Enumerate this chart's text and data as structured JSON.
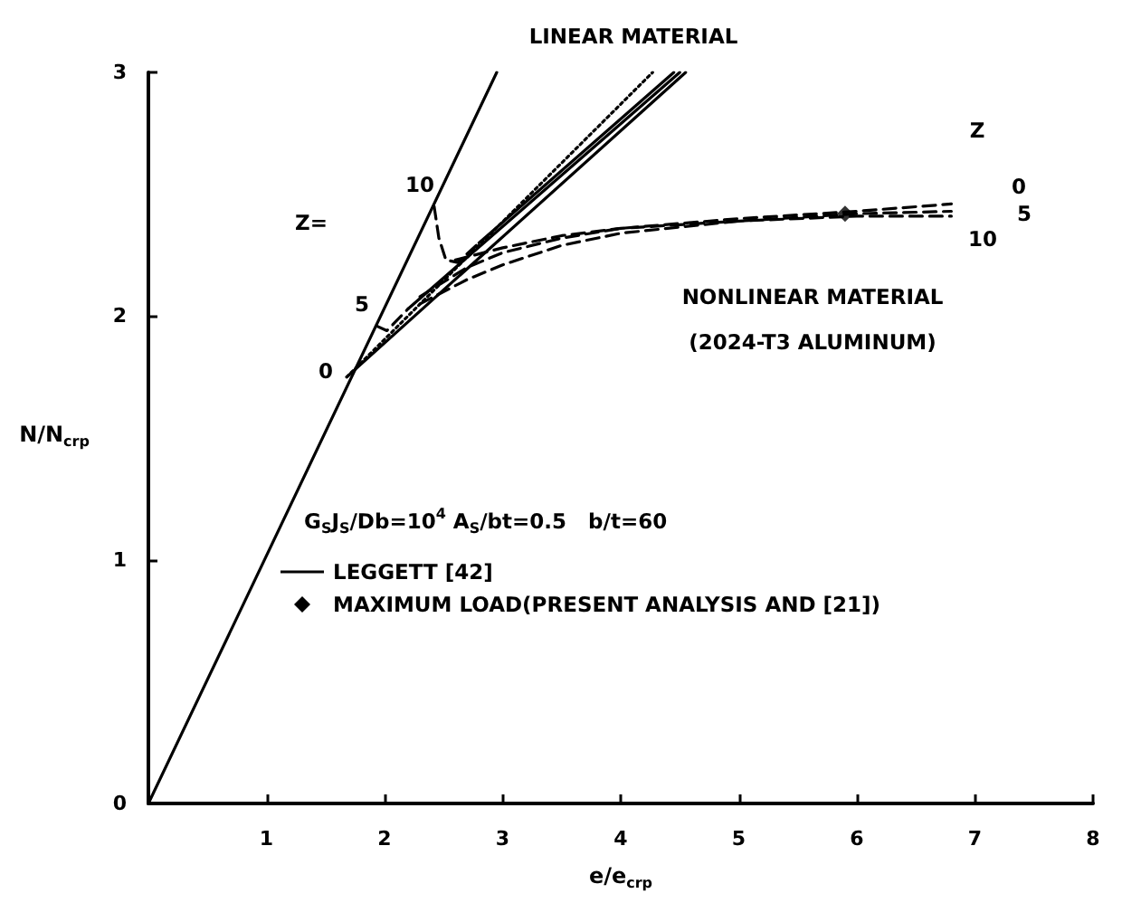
{
  "chart_data": {
    "type": "line",
    "xlabel": "e/e$_{crp}$",
    "ylabel": "N/N$_{crp}$",
    "xlim": [
      0,
      8
    ],
    "xticks": [
      {
        "value": 0,
        "label": null
      },
      1,
      2,
      3,
      4,
      5,
      6,
      7,
      8
    ],
    "ylim": [
      0,
      3
    ],
    "yticks": [
      0,
      1,
      2,
      3
    ],
    "grid": false,
    "legend": "left",
    "marker": "none",
    "annotations": [
      "LINEAR MATERIAL",
      "G$_{S}$J$_{S}$/Db=10$^{4}$ A$_{S}$/bt=0.5   b/t=60",
      "Z=",
      "10",
      "5",
      "0",
      "Z",
      "0",
      "5",
      "10",
      "NONLINEAR MATERIAL",
      "(2024-T3 ALUMINUM)"
    ],
    "series": [
      {
        "color": "#000000",
        "line_style": "solid",
        "x": [
          0,
          2.95
        ],
        "values": [
          0,
          3.0
        ]
      },
      {
        "color": "#000000",
        "line_style": "solid",
        "x": [
          1.68,
          4.55
        ],
        "values": [
          1.75,
          3.0
        ]
      },
      {
        "name": "LEGGETT [42]",
        "color": "#000000",
        "line_style": "dotted",
        "x": [
          1.68,
          4.27
        ],
        "values": [
          1.75,
          3.0
        ]
      },
      {
        "color": "#000000",
        "line_style": "dashed",
        "x": [
          1.93,
          2.02,
          2.2
        ],
        "values": [
          1.96,
          1.94,
          2.03
        ]
      },
      {
        "color": "#000000",
        "line_style": "solid",
        "x": [
          2.2,
          4.5
        ],
        "values": [
          2.03,
          3.0
        ]
      },
      {
        "color": "#000000",
        "line_style": "dashed",
        "x": [
          2.42,
          2.46,
          2.52,
          2.62,
          2.8
        ],
        "values": [
          2.45,
          2.32,
          2.23,
          2.22,
          2.3
        ]
      },
      {
        "color": "#000000",
        "line_style": "solid",
        "x": [
          2.8,
          4.45
        ],
        "values": [
          2.3,
          3.0
        ]
      },
      {
        "color": "#000000",
        "line_style": "dashed",
        "x": [
          2.3,
          2.7,
          3,
          3.5,
          4,
          5,
          6,
          6.8
        ],
        "values": [
          2.08,
          2.2,
          2.26,
          2.32,
          2.36,
          2.4,
          2.43,
          2.46
        ]
      },
      {
        "color": "#000000",
        "line_style": "dashed",
        "x": [
          2.3,
          2.7,
          3,
          3.5,
          4,
          5,
          6,
          6.8
        ],
        "values": [
          2.05,
          2.15,
          2.21,
          2.29,
          2.34,
          2.39,
          2.42,
          2.43
        ]
      },
      {
        "color": "#000000",
        "line_style": "dashed",
        "x": [
          2.6,
          3,
          3.5,
          4,
          5,
          6,
          6.8
        ],
        "values": [
          2.23,
          2.28,
          2.33,
          2.36,
          2.39,
          2.41,
          2.41
        ]
      },
      {
        "name": "MAXIMUM LOAD(PRESENT ANALYSIS AND [21])",
        "type": "scatter",
        "marker": "diamond",
        "color": "#000000",
        "x": [
          5.9
        ],
        "values": [
          2.42
        ]
      }
    ]
  }
}
